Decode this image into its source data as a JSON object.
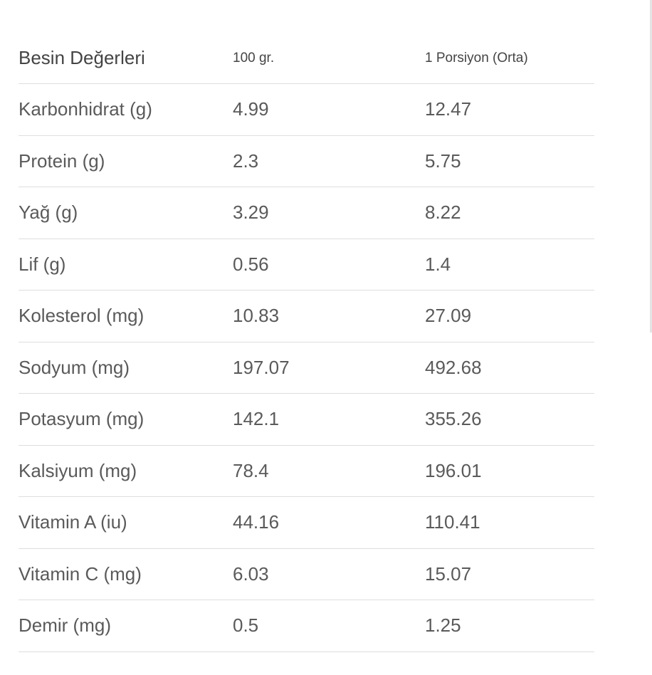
{
  "table": {
    "headers": [
      "Besin Değerleri",
      "100 gr.",
      "1 Porsiyon (Orta)"
    ],
    "rows": [
      [
        "Karbonhidrat (g)",
        "4.99",
        "12.47"
      ],
      [
        "Protein (g)",
        "2.3",
        "5.75"
      ],
      [
        "Yağ (g)",
        "3.29",
        "8.22"
      ],
      [
        "Lif (g)",
        "0.56",
        "1.4"
      ],
      [
        "Kolesterol (mg)",
        "10.83",
        "27.09"
      ],
      [
        "Sodyum (mg)",
        "197.07",
        "492.68"
      ],
      [
        "Potasyum (mg)",
        "142.1",
        "355.26"
      ],
      [
        "Kalsiyum (mg)",
        "78.4",
        "196.01"
      ],
      [
        "Vitamin A (iu)",
        "44.16",
        "110.41"
      ],
      [
        "Vitamin C (mg)",
        "6.03",
        "15.07"
      ],
      [
        "Demir (mg)",
        "0.5",
        "1.25"
      ]
    ]
  },
  "colors": {
    "text": "#555555",
    "header_text": "#444444",
    "divider": "#dedede",
    "background": "#ffffff"
  }
}
